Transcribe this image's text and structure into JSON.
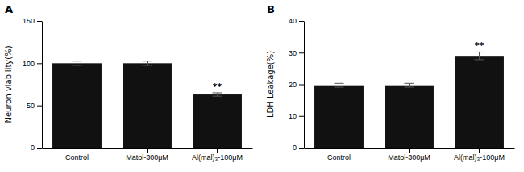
{
  "chart_data": [
    {
      "type": "bar",
      "title": "A",
      "categories": [
        "Control",
        "Matol-300μM",
        "Al(mal)₃-100μM"
      ],
      "values": [
        100.0,
        100.0,
        63.0
      ],
      "errors": [
        2.5,
        2.5,
        2.0
      ],
      "color": "#111111",
      "ylabel": "Neuron viability(%)",
      "ylim": [
        0,
        150
      ],
      "yticks": [
        0,
        50,
        100,
        150
      ],
      "annotations": [
        {
          "text": "**",
          "category": "Al(mal)₃-100μM"
        }
      ]
    },
    {
      "type": "bar",
      "title": "B",
      "categories": [
        "Control",
        "Matol-300μM",
        "Al(mal)₃-100μM"
      ],
      "values": [
        19.7,
        19.7,
        29.0
      ],
      "errors": [
        0.6,
        0.6,
        1.2
      ],
      "color": "#111111",
      "ylabel": "LDH Leakage(%)",
      "ylim": [
        0,
        40
      ],
      "yticks": [
        0,
        10,
        20,
        30,
        40
      ],
      "annotations": [
        {
          "text": "**",
          "category": "Al(mal)₃-100μM"
        }
      ]
    }
  ]
}
